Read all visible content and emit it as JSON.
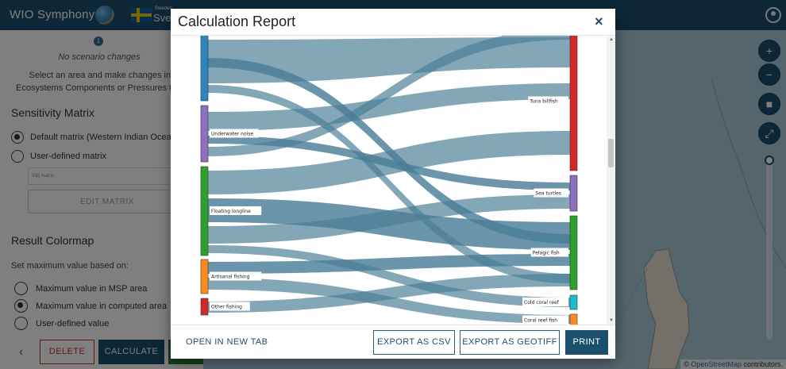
{
  "header": {
    "app_title": "WIO Symphony",
    "country_small": "Sweden",
    "country": "Sverige"
  },
  "sidebar": {
    "step_number": "1",
    "no_changes": "No scenario changes",
    "help_line1": "Select an area and make changes in the",
    "help_line2": "Ecosystems Components or Pressures tab",
    "sensitivity_title": "Sensitivity Matrix",
    "default_matrix": "Default matrix (Western Indian Ocean)",
    "user_matrix": "User-defined matrix",
    "matrix_placeholder": "Välj matris",
    "edit_matrix": "EDIT MATRIX",
    "colormap_title": "Result Colormap",
    "set_max_label": "Set maximum value based on:",
    "max_options": [
      "Maximum value in MSP area",
      "Maximum value in computed area",
      "User-defined value"
    ],
    "selected_max_option": 1,
    "back_symbol": "‹",
    "delete_label": "DELETE",
    "calculate_label": "CALCULATE"
  },
  "map": {
    "attribution_prefix": "©",
    "attribution_link": "OpenStreetMap",
    "attribution_suffix": " contributors."
  },
  "modal": {
    "title": "Calculation Report",
    "close_symbol": "×",
    "open_new_tab": "OPEN IN NEW TAB",
    "export_csv": "EXPORT AS CSV",
    "export_geotiff": "EXPORT AS GEOTIFF",
    "print": "PRINT"
  },
  "sankey": {
    "left_nodes": [
      {
        "label": "",
        "color": "#2e86c1"
      },
      {
        "label": "Underwater noise",
        "color": "#8e6fbf"
      },
      {
        "label": "Floating longline",
        "color": "#2ca02c"
      },
      {
        "label": "Artisanal fishing",
        "color": "#ff8c1a"
      },
      {
        "label": "Other fishing",
        "color": "#d62728"
      }
    ],
    "right_nodes": [
      {
        "label": "Tuna billfish",
        "color": "#d62728"
      },
      {
        "label": "Sea turtles",
        "color": "#8e6fbf"
      },
      {
        "label": "Pelagic fish",
        "color": "#2ca02c"
      },
      {
        "label": "Cold coral reef",
        "color": "#17becf"
      },
      {
        "label": "Coral reef fish",
        "color": "#ff8c1a"
      }
    ],
    "link_color": "#4a7e97"
  }
}
